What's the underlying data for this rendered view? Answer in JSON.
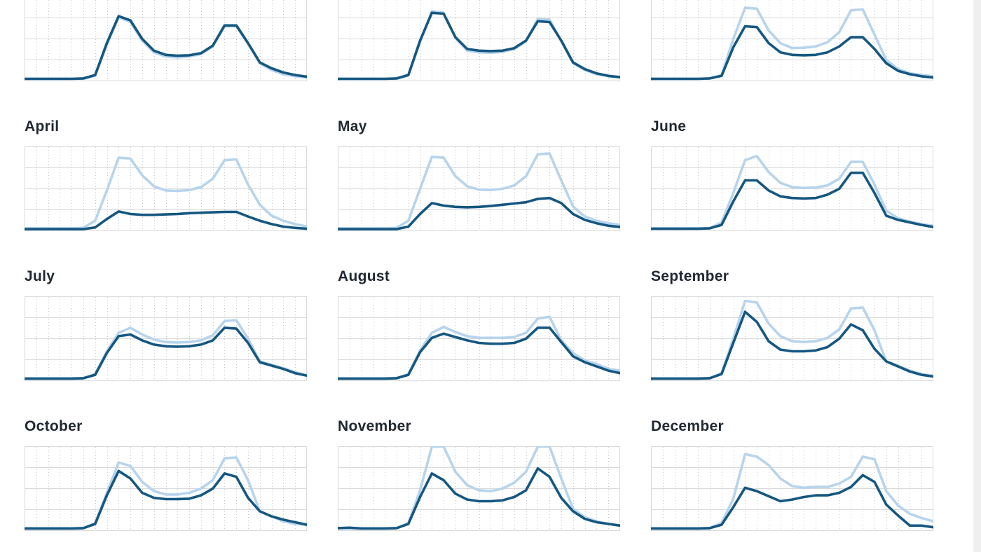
{
  "page": {
    "background_color": "#ffffff",
    "right_gutter_color": "#efefef"
  },
  "chart_data": {
    "type": "line",
    "layout": "small-multiples, 3 columns x 4 rows, top row clipped by viewport",
    "x": [
      0,
      1,
      2,
      3,
      4,
      5,
      6,
      7,
      8,
      9,
      10,
      11,
      12,
      13,
      14,
      15,
      16,
      17,
      18,
      19,
      20,
      21,
      22,
      23,
      24
    ],
    "x_axis": {
      "tick_labels_visible": false,
      "gridlines": "dotted vertical line each hour"
    },
    "y_axis": {
      "tick_labels_visible": false,
      "range": [
        0,
        100
      ],
      "solid_gridline_bands": 4
    },
    "legend_visible": false,
    "series_colors": {
      "light_blue": "#b7d4ec",
      "dark_blue": "#155781"
    },
    "charts": [
      {
        "title": "",
        "series": {
          "light_blue": [
            2.5,
            2.5,
            2.5,
            2.5,
            2.5,
            2.5,
            6,
            43,
            76,
            70,
            48,
            34,
            29,
            28,
            29,
            32,
            41,
            65,
            65,
            44,
            21,
            13,
            8,
            5.5,
            4
          ],
          "dark_blue": [
            2.5,
            2.5,
            2.5,
            2.5,
            2.5,
            3,
            7,
            45,
            77,
            72,
            50,
            36,
            31,
            30,
            30.5,
            33,
            42,
            66,
            66,
            45,
            22,
            15,
            10,
            7,
            5
          ]
        }
      },
      {
        "title": "",
        "series": {
          "light_blue": [
            2.5,
            2.5,
            2.5,
            2.5,
            2.5,
            2.5,
            6.5,
            46,
            83,
            81,
            51,
            36,
            34,
            33.5,
            34.5,
            38,
            47,
            74,
            73,
            47,
            21,
            13,
            8,
            5.5,
            4
          ],
          "dark_blue": [
            2.5,
            2.5,
            2.5,
            2.5,
            2.5,
            3,
            7,
            48,
            81,
            80,
            52,
            38,
            36,
            35.5,
            36,
            39,
            48,
            71,
            70,
            48,
            22,
            14,
            9,
            6,
            4.5
          ]
        }
      },
      {
        "title": "",
        "series": {
          "light_blue": [
            2.5,
            2.5,
            2.5,
            2.5,
            2.5,
            3,
            7,
            50,
            87,
            86,
            60,
            45,
            39,
            39.5,
            41,
            46,
            58,
            84,
            85,
            55,
            25,
            14,
            9,
            7,
            5.5
          ],
          "dark_blue": [
            2.5,
            2.5,
            2.5,
            2.5,
            2.5,
            3,
            6,
            40,
            65,
            64,
            45,
            34,
            31,
            30.5,
            31,
            34,
            41,
            52,
            52,
            38,
            21,
            12,
            8,
            5.5,
            4
          ]
        }
      },
      {
        "title": "April",
        "series": {
          "light_blue": [
            3,
            3,
            3,
            3,
            3,
            3.5,
            12,
            48,
            87,
            86,
            66,
            53,
            48,
            47.5,
            48.5,
            52,
            62,
            84,
            85,
            55,
            31,
            18,
            12,
            8,
            5
          ],
          "dark_blue": [
            2,
            2,
            2,
            2,
            2,
            2,
            4,
            14,
            23,
            20,
            19,
            19,
            19.5,
            20,
            21,
            21.5,
            22,
            22.5,
            22.5,
            17,
            12,
            8,
            5,
            3.5,
            2.5
          ]
        }
      },
      {
        "title": "May",
        "series": {
          "light_blue": [
            3,
            3,
            3,
            3,
            3,
            3.5,
            12,
            50,
            88,
            87,
            65,
            53,
            49,
            48.5,
            50,
            54,
            65,
            91,
            92,
            60,
            29,
            17,
            12,
            9,
            7
          ],
          "dark_blue": [
            2,
            2,
            2,
            2,
            2,
            2,
            5,
            20,
            33,
            30,
            28.5,
            28,
            28.5,
            29.5,
            31,
            32.5,
            34,
            38,
            39,
            33,
            20,
            13,
            9,
            6,
            4.5
          ]
        }
      },
      {
        "title": "June",
        "series": {
          "light_blue": [
            3,
            3,
            3,
            3,
            3,
            3,
            10,
            45,
            84,
            89,
            70,
            57,
            52,
            51,
            51.5,
            54,
            62,
            82,
            82,
            55,
            24,
            15,
            11,
            8,
            6
          ],
          "dark_blue": [
            2.5,
            2.5,
            2.5,
            2.5,
            2.5,
            3,
            7,
            35,
            60,
            60,
            48,
            41,
            39,
            38.5,
            39,
            43,
            50,
            69,
            69,
            45,
            18,
            13,
            10,
            7,
            4.5
          ]
        }
      },
      {
        "title": "July",
        "series": {
          "light_blue": [
            3,
            3,
            3,
            3,
            3,
            3,
            8,
            35,
            57,
            63,
            55,
            49,
            46,
            45.5,
            46,
            48,
            54,
            71,
            72,
            50,
            23,
            19,
            15,
            10,
            6.5
          ],
          "dark_blue": [
            2.5,
            2.5,
            2.5,
            2.5,
            2.5,
            3,
            7,
            33,
            53,
            55,
            48,
            43,
            41,
            40.5,
            41,
            43,
            48,
            63,
            62,
            45,
            22,
            18,
            14,
            9,
            6
          ]
        }
      },
      {
        "title": "August",
        "series": {
          "light_blue": [
            3,
            3,
            3,
            3,
            3,
            3,
            8,
            36,
            57,
            64,
            58,
            53,
            51,
            51,
            51,
            52,
            57,
            74,
            76,
            48,
            33,
            24,
            20,
            14,
            12
          ],
          "dark_blue": [
            2.5,
            2.5,
            2.5,
            2.5,
            2.5,
            3,
            7,
            34,
            51,
            56,
            52,
            48,
            45,
            44,
            44,
            45,
            50,
            63,
            63,
            46,
            29,
            22,
            17,
            12,
            9
          ]
        }
      },
      {
        "title": "September",
        "series": {
          "light_blue": [
            3,
            3,
            3,
            3,
            3,
            3,
            9,
            50,
            95,
            93,
            68,
            53,
            47,
            46,
            47,
            51,
            61,
            86,
            87,
            60,
            23,
            18,
            12,
            8,
            6
          ],
          "dark_blue": [
            2.5,
            2.5,
            2.5,
            2.5,
            2.5,
            3,
            8,
            45,
            82,
            70,
            47,
            37,
            35,
            35,
            36,
            40,
            50,
            67,
            60,
            38,
            23,
            17,
            11,
            7,
            5
          ]
        }
      },
      {
        "title": "October",
        "series": {
          "light_blue": [
            3,
            3,
            3,
            3,
            3,
            3,
            9,
            45,
            81,
            77,
            58,
            47,
            43,
            43,
            45,
            50,
            60,
            86,
            87,
            60,
            23,
            17,
            11,
            8,
            7
          ],
          "dark_blue": [
            2.5,
            2.5,
            2.5,
            2.5,
            2.5,
            3,
            8,
            42,
            71,
            62,
            45,
            39,
            37.5,
            37.5,
            38,
            42,
            50,
            68,
            64,
            39,
            23,
            17,
            13,
            10,
            7
          ]
        }
      },
      {
        "title": "November",
        "series": {
          "light_blue": [
            3,
            3,
            3,
            3,
            3,
            3,
            9,
            48,
            100,
            100,
            70,
            54,
            48,
            47,
            50,
            57,
            70,
            100,
            100,
            62,
            26,
            16,
            11,
            8,
            6
          ],
          "dark_blue": [
            3,
            3.5,
            2.5,
            2.5,
            2.5,
            3,
            8,
            40,
            68,
            60,
            44,
            37,
            35,
            35,
            36,
            40,
            48,
            74,
            64,
            39,
            23,
            14,
            10,
            8,
            6
          ]
        }
      },
      {
        "title": "December",
        "series": {
          "light_blue": [
            3,
            3,
            3,
            3,
            3,
            3,
            9,
            38,
            91,
            88,
            78,
            62,
            53,
            51,
            52,
            52,
            56,
            64,
            88,
            85,
            47,
            30,
            20,
            15,
            11
          ],
          "dark_blue": [
            2.5,
            2.5,
            2.5,
            2.5,
            2.5,
            3,
            7,
            28,
            51,
            47,
            41,
            35,
            37,
            40,
            42,
            42,
            45,
            52,
            66,
            58,
            31,
            18,
            6,
            6,
            4
          ]
        }
      }
    ]
  }
}
